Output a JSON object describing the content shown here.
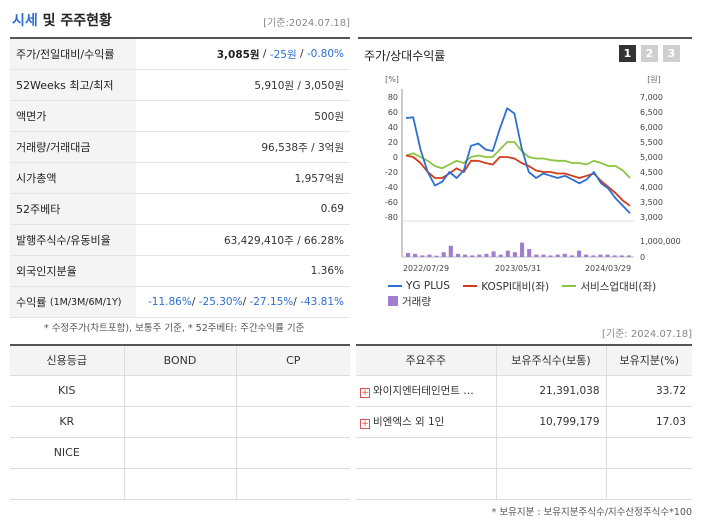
{
  "header": {
    "title_main": "시세",
    "title_rest": " 및 주주현황",
    "date": "[기준:2024.07.18]"
  },
  "stock_info": {
    "price": {
      "label": "주가/전일대비/수익률",
      "value": "3,085원",
      "change": "-25원",
      "rate": "-0.80%"
    },
    "week52": {
      "label": "52Weeks 최고/최저",
      "value": "5,910원 / 3,050원"
    },
    "par": {
      "label": "액면가",
      "value": "500원"
    },
    "volume": {
      "label": "거래량/거래대금",
      "value": "96,538주 / 3억원"
    },
    "mcap": {
      "label": "시가총액",
      "value": "1,957억원"
    },
    "beta": {
      "label": "52주베타",
      "value": "0.69"
    },
    "shares": {
      "label": "발행주식수/유동비율",
      "value": "63,429,410주 / 66.28%"
    },
    "foreign": {
      "label": "외국인지분율",
      "value": "1.36%"
    },
    "returns": {
      "label": "수익률",
      "label_sub": "(1M/3M/6M/1Y)",
      "r1": "-11.86%",
      "r2": "-25.30%",
      "r3": "-27.15%",
      "r4": "-43.81%"
    }
  },
  "note": "* 수정주가(차트포함), 보통주 기준, * 52주베타: 주간수익률 기준",
  "chart_panel": {
    "title": "주가/상대수익률",
    "tabs": [
      "1",
      "2",
      "3"
    ]
  },
  "chart_data": {
    "type": "line",
    "left_unit": "[%]",
    "right_unit": "[원]",
    "left_ylim": [
      -80,
      80
    ],
    "left_ticks": [
      "80",
      "60",
      "40",
      "20",
      "0",
      "-20",
      "-40",
      "-60",
      "-80"
    ],
    "right_ylim": [
      3000,
      7000
    ],
    "right_ticks": [
      "7,000",
      "6,500",
      "6,000",
      "5,500",
      "5,000",
      "4,500",
      "4,000",
      "3,500",
      "3,000"
    ],
    "volume_ticks": [
      "1,000,000",
      "0"
    ],
    "volume_max": 1000000,
    "x_labels": [
      "2022/07/29",
      "2023/05/31",
      "2024/03/29"
    ],
    "series": [
      {
        "name": "YG PLUS",
        "color": "#2d6fd1",
        "axis": "left",
        "values": [
          52,
          53,
          10,
          -20,
          -38,
          -33,
          -20,
          -28,
          -18,
          15,
          18,
          10,
          8,
          38,
          65,
          58,
          12,
          -20,
          -28,
          -22,
          -25,
          -28,
          -25,
          -30,
          -35,
          -30,
          -20,
          -35,
          -42,
          -55,
          -65,
          -75
        ]
      },
      {
        "name": "KOSPI대비(좌)",
        "color": "#d23c1e",
        "axis": "left",
        "values": [
          2,
          0,
          -8,
          -20,
          -28,
          -28,
          -22,
          -15,
          -20,
          -5,
          -5,
          -8,
          -10,
          0,
          0,
          -2,
          -8,
          -12,
          -18,
          -20,
          -20,
          -22,
          -22,
          -25,
          -28,
          -25,
          -22,
          -32,
          -40,
          -48,
          -58,
          -65
        ]
      },
      {
        "name": "서비스업대비(좌)",
        "color": "#8bc53f",
        "axis": "left",
        "values": [
          2,
          5,
          0,
          -5,
          -12,
          -15,
          -10,
          -5,
          -8,
          0,
          2,
          0,
          0,
          10,
          20,
          20,
          8,
          0,
          -2,
          -2,
          -4,
          -5,
          -5,
          -8,
          -8,
          -10,
          -5,
          -8,
          -12,
          -12,
          -18,
          -28
        ]
      }
    ],
    "volume_series": {
      "name": "거래량",
      "color": "#a07ed0",
      "values": [
        250000,
        200000,
        100000,
        150000,
        80000,
        300000,
        700000,
        200000,
        150000,
        100000,
        150000,
        200000,
        350000,
        150000,
        400000,
        300000,
        900000,
        500000,
        150000,
        150000,
        100000,
        150000,
        200000,
        100000,
        400000,
        150000,
        100000,
        150000,
        150000,
        100000,
        100000,
        100000
      ]
    }
  },
  "date2": "[기준: 2024.07.18]",
  "credit": {
    "headers": [
      "신용등급",
      "BOND",
      "CP"
    ],
    "rows": [
      {
        "agency": "KIS",
        "bond": "",
        "cp": ""
      },
      {
        "agency": "KR",
        "bond": "",
        "cp": ""
      },
      {
        "agency": "NICE",
        "bond": "",
        "cp": ""
      },
      {
        "agency": "",
        "bond": "",
        "cp": ""
      }
    ]
  },
  "holders": {
    "headers": [
      "주요주주",
      "보유주식수(보통)",
      "보유지분(%)"
    ],
    "rows": [
      {
        "name": "와이지엔터테인먼트 …",
        "shares": "21,391,038",
        "pct": "33.72"
      },
      {
        "name": "비엔엑스 외 1인",
        "shares": "10,799,179",
        "pct": "17.03"
      },
      {
        "name": "",
        "shares": "",
        "pct": ""
      },
      {
        "name": "",
        "shares": "",
        "pct": ""
      }
    ]
  },
  "footnote": "* 보유지분 : 보유지분주식수/지수산정주식수*100"
}
